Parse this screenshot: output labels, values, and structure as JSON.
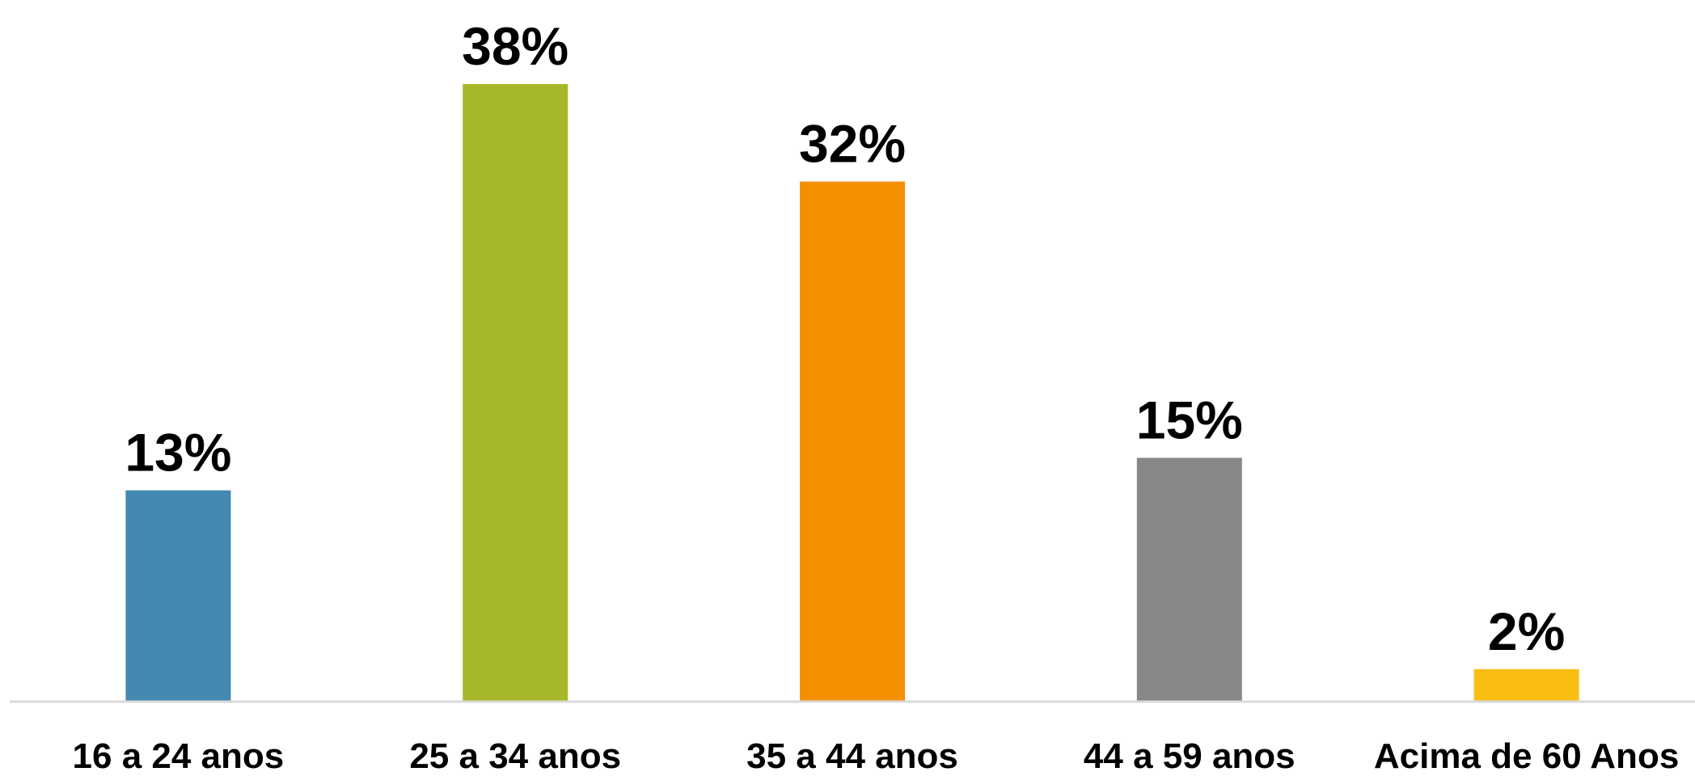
{
  "chart_data": {
    "type": "bar",
    "title": "",
    "xlabel": "",
    "ylabel": "",
    "categories": [
      "16 a 24 anos",
      "25 a 34 anos",
      "35 a 44 anos",
      "44 a 59 anos",
      "Acima de 60 Anos"
    ],
    "values": [
      13,
      38,
      32,
      15,
      2
    ],
    "data_labels": [
      "13%",
      "38%",
      "32%",
      "15%",
      "2%"
    ],
    "colors": [
      "#4389B2",
      "#A6B82A",
      "#F39000",
      "#878787",
      "#F9BE11"
    ],
    "ylim": [
      0,
      38
    ],
    "grid": false,
    "legend": "none"
  }
}
